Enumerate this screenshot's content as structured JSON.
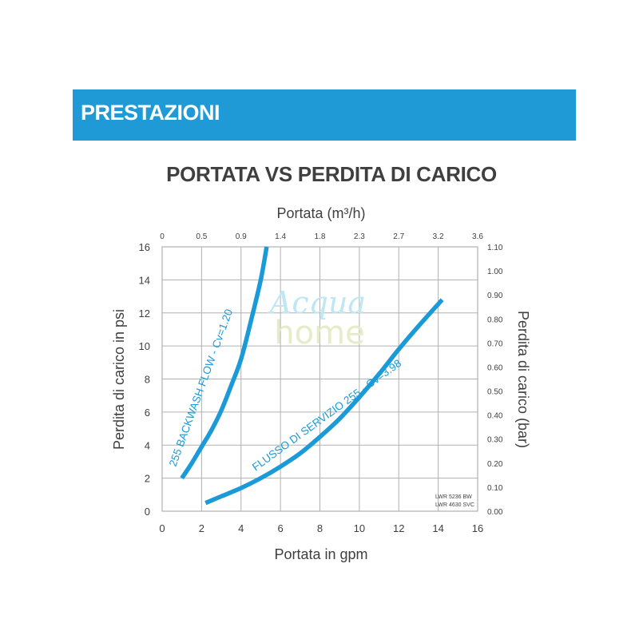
{
  "header": {
    "title": "PRESTAZIONI"
  },
  "colors": {
    "banner": "#1f9ad6",
    "curve": "#1a9ad7",
    "grid": "#b0b0b0",
    "text": "#3f3f3f"
  },
  "watermark": {
    "line1": "Acqua",
    "line2": "home"
  },
  "chart_data": {
    "type": "line",
    "title": "PORTATA VS PERDITA DI CARICO",
    "xlabel": "Portata in gpm",
    "ylabel": "Perdita di carico in psi",
    "x2label": "Portata (m³/h)",
    "y2label": "Perdita di carico (bar)",
    "xlim": [
      0,
      16
    ],
    "ylim": [
      0,
      16
    ],
    "x_ticks": [
      "0",
      "2",
      "4",
      "6",
      "8",
      "10",
      "12",
      "14",
      "16"
    ],
    "y_ticks": [
      "0",
      "2",
      "4",
      "6",
      "8",
      "10",
      "12",
      "14",
      "16"
    ],
    "x2_ticks": [
      "0",
      "0.5",
      "0.9",
      "1.4",
      "1.8",
      "2.3",
      "2.7",
      "3.2",
      "3.6"
    ],
    "y2_ticks": [
      "0.00",
      "0.10",
      "0.20",
      "0.30",
      "0.40",
      "0.50",
      "0.60",
      "0.70",
      "0.80",
      "0.90",
      "1.00",
      "1.10"
    ],
    "grid": true,
    "series": [
      {
        "name": "255 BACKWASH FLOW - Cv=1.20",
        "x": [
          1.0,
          1.5,
          2.0,
          2.5,
          3.0,
          3.5,
          4.0,
          4.5,
          5.0,
          5.3
        ],
        "y": [
          2.0,
          2.9,
          3.9,
          4.9,
          6.1,
          7.6,
          9.2,
          11.5,
          14.0,
          16.0
        ]
      },
      {
        "name": "FLUSSO DI SERVIZIO 255 - Cv=3.98",
        "x": [
          2.2,
          3.0,
          4.0,
          5.0,
          6.0,
          7.0,
          8.0,
          9.0,
          10.0,
          11.0,
          12.0,
          13.0,
          14.2
        ],
        "y": [
          0.5,
          0.9,
          1.4,
          2.0,
          2.7,
          3.5,
          4.5,
          5.6,
          6.9,
          8.3,
          9.8,
          11.2,
          12.8
        ]
      }
    ],
    "note_lines": [
      "LWR 5236  BW",
      "LWR 4630 SVC"
    ]
  }
}
